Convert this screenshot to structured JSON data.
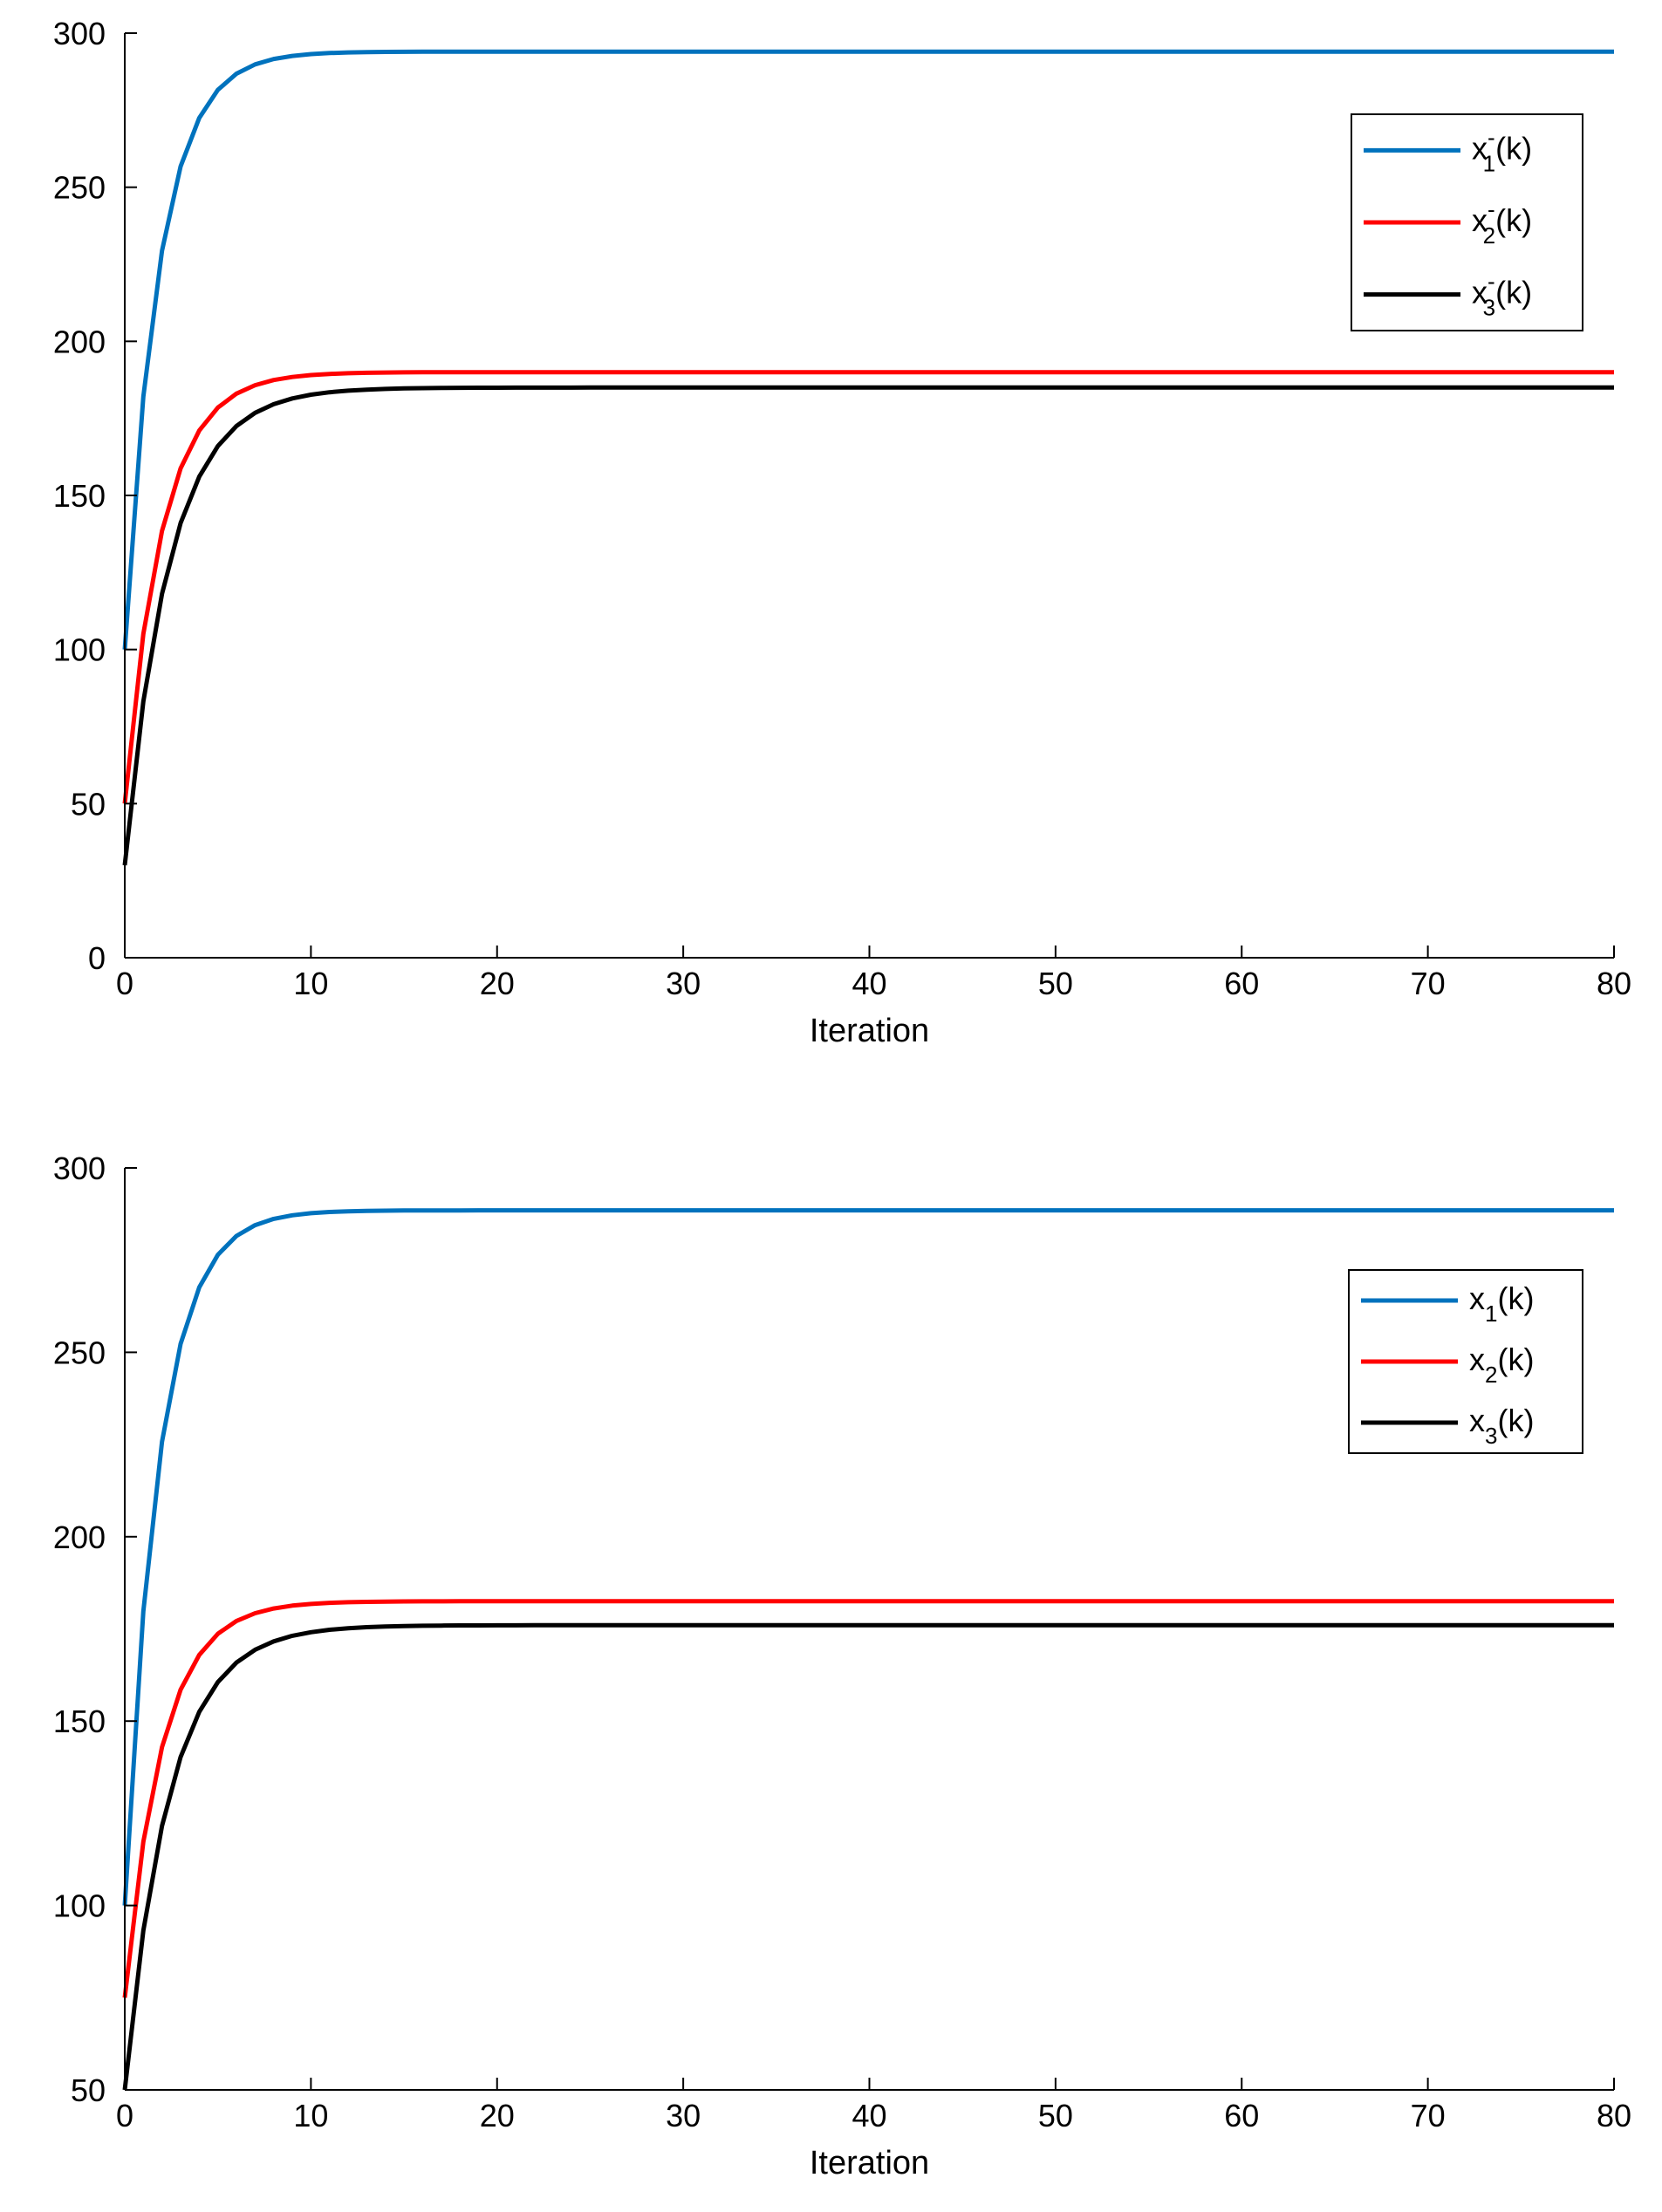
{
  "chart_data": [
    {
      "type": "line",
      "title": "",
      "xlabel": "Iteration",
      "ylabel": "",
      "xlim": [
        0,
        80
      ],
      "ylim": [
        0,
        300
      ],
      "xticks": [
        0,
        10,
        20,
        30,
        40,
        50,
        60,
        70,
        80
      ],
      "yticks": [
        0,
        50,
        100,
        150,
        200,
        250,
        300
      ],
      "grid": false,
      "legend_position": "top-right",
      "series": [
        {
          "name": "x⁻₁(k)",
          "label_base": "x",
          "label_sup": "-",
          "label_sub": "1",
          "label_tail": "(k)",
          "color": "#0072BD",
          "start": 100,
          "end": 294,
          "rate": 0.55
        },
        {
          "name": "x⁻₂(k)",
          "label_base": "x",
          "label_sup": "-",
          "label_sub": "2",
          "label_tail": "(k)",
          "color": "#FF0000",
          "start": 50,
          "end": 190,
          "rate": 0.5
        },
        {
          "name": "x⁻₃(k)",
          "label_base": "x",
          "label_sup": "-",
          "label_sub": "3",
          "label_tail": "(k)",
          "color": "#000000",
          "start": 30,
          "end": 185,
          "rate": 0.42
        }
      ]
    },
    {
      "type": "line",
      "title": "",
      "xlabel": "Iteration",
      "ylabel": "",
      "xlim": [
        0,
        80
      ],
      "ylim": [
        50,
        300
      ],
      "xticks": [
        0,
        10,
        20,
        30,
        40,
        50,
        60,
        70,
        80
      ],
      "yticks": [
        50,
        100,
        150,
        200,
        250,
        300
      ],
      "grid": false,
      "legend_position": "top-right",
      "series": [
        {
          "name": "x₁(k)",
          "label_base": "x",
          "label_sup": "",
          "label_sub": "1",
          "label_tail": "(k)",
          "color": "#0072BD",
          "start": 100,
          "end": 288.5,
          "rate": 0.55
        },
        {
          "name": "x₂(k)",
          "label_base": "x",
          "label_sup": "",
          "label_sub": "2",
          "label_tail": "(k)",
          "color": "#FF0000",
          "start": 75,
          "end": 182.5,
          "rate": 0.5
        },
        {
          "name": "x₃(k)",
          "label_base": "x",
          "label_sup": "",
          "label_sub": "3",
          "label_tail": "(k)",
          "color": "#000000",
          "start": 50,
          "end": 176,
          "rate": 0.42
        }
      ]
    }
  ]
}
